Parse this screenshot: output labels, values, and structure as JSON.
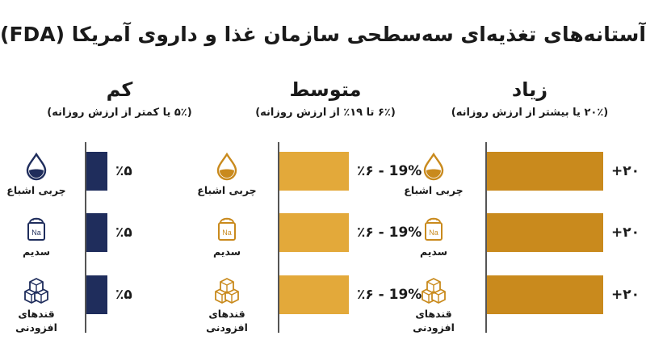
{
  "title": "آستانه‌های تغذیه‌ای سه‌سطحی سازمان غذا و داروی آمریکا (FDA)",
  "colors": {
    "low": "#1f2d5c",
    "medium": "#e3a93a",
    "high": "#c98a1d",
    "icon_low": "#1f2d5c",
    "icon_warm": "#c98a1d"
  },
  "columns": [
    {
      "name": "کم",
      "desc": "(۵٪ یا کمتر از ارزش روزانه)"
    },
    {
      "name": "متوسط",
      "desc": "(۶٪ تا ۱۹٪ از ارزش روزانه)"
    },
    {
      "name": "زیاد",
      "desc": "(۲۰٪ یا بیشتر از ارزش روزانه)"
    }
  ],
  "rows": [
    {
      "label": "چربی اشباع",
      "icon": "droplet-icon"
    },
    {
      "label": "سدیم",
      "icon": "salt-shaker-icon",
      "icon_text": "Na"
    },
    {
      "label": "قندهای افزودنی",
      "icon": "sugar-cubes-icon"
    }
  ],
  "chart_data": {
    "type": "bar",
    "orientation": "horizontal",
    "title": "آستانه‌های تغذیه‌ای سه‌سطحی سازمان غذا و داروی آمریکا (FDA)",
    "categories": [
      "چربی اشباع",
      "سدیم",
      "قندهای افزودنی"
    ],
    "series": [
      {
        "name": "کم",
        "values": [
          5,
          5,
          5
        ],
        "labels": [
          "٪۵",
          "٪۵",
          "٪۵"
        ]
      },
      {
        "name": "متوسط",
        "values": [
          12.5,
          12.5,
          12.5
        ],
        "labels": [
          "٪۶ - 19%",
          "٪۶ - 19%",
          "٪۶ - 19%"
        ]
      },
      {
        "name": "زیاد",
        "values": [
          20,
          20,
          20
        ],
        "labels": [
          "+۲۰",
          "+۲۰",
          "+۲۰"
        ]
      }
    ],
    "grid": false
  }
}
